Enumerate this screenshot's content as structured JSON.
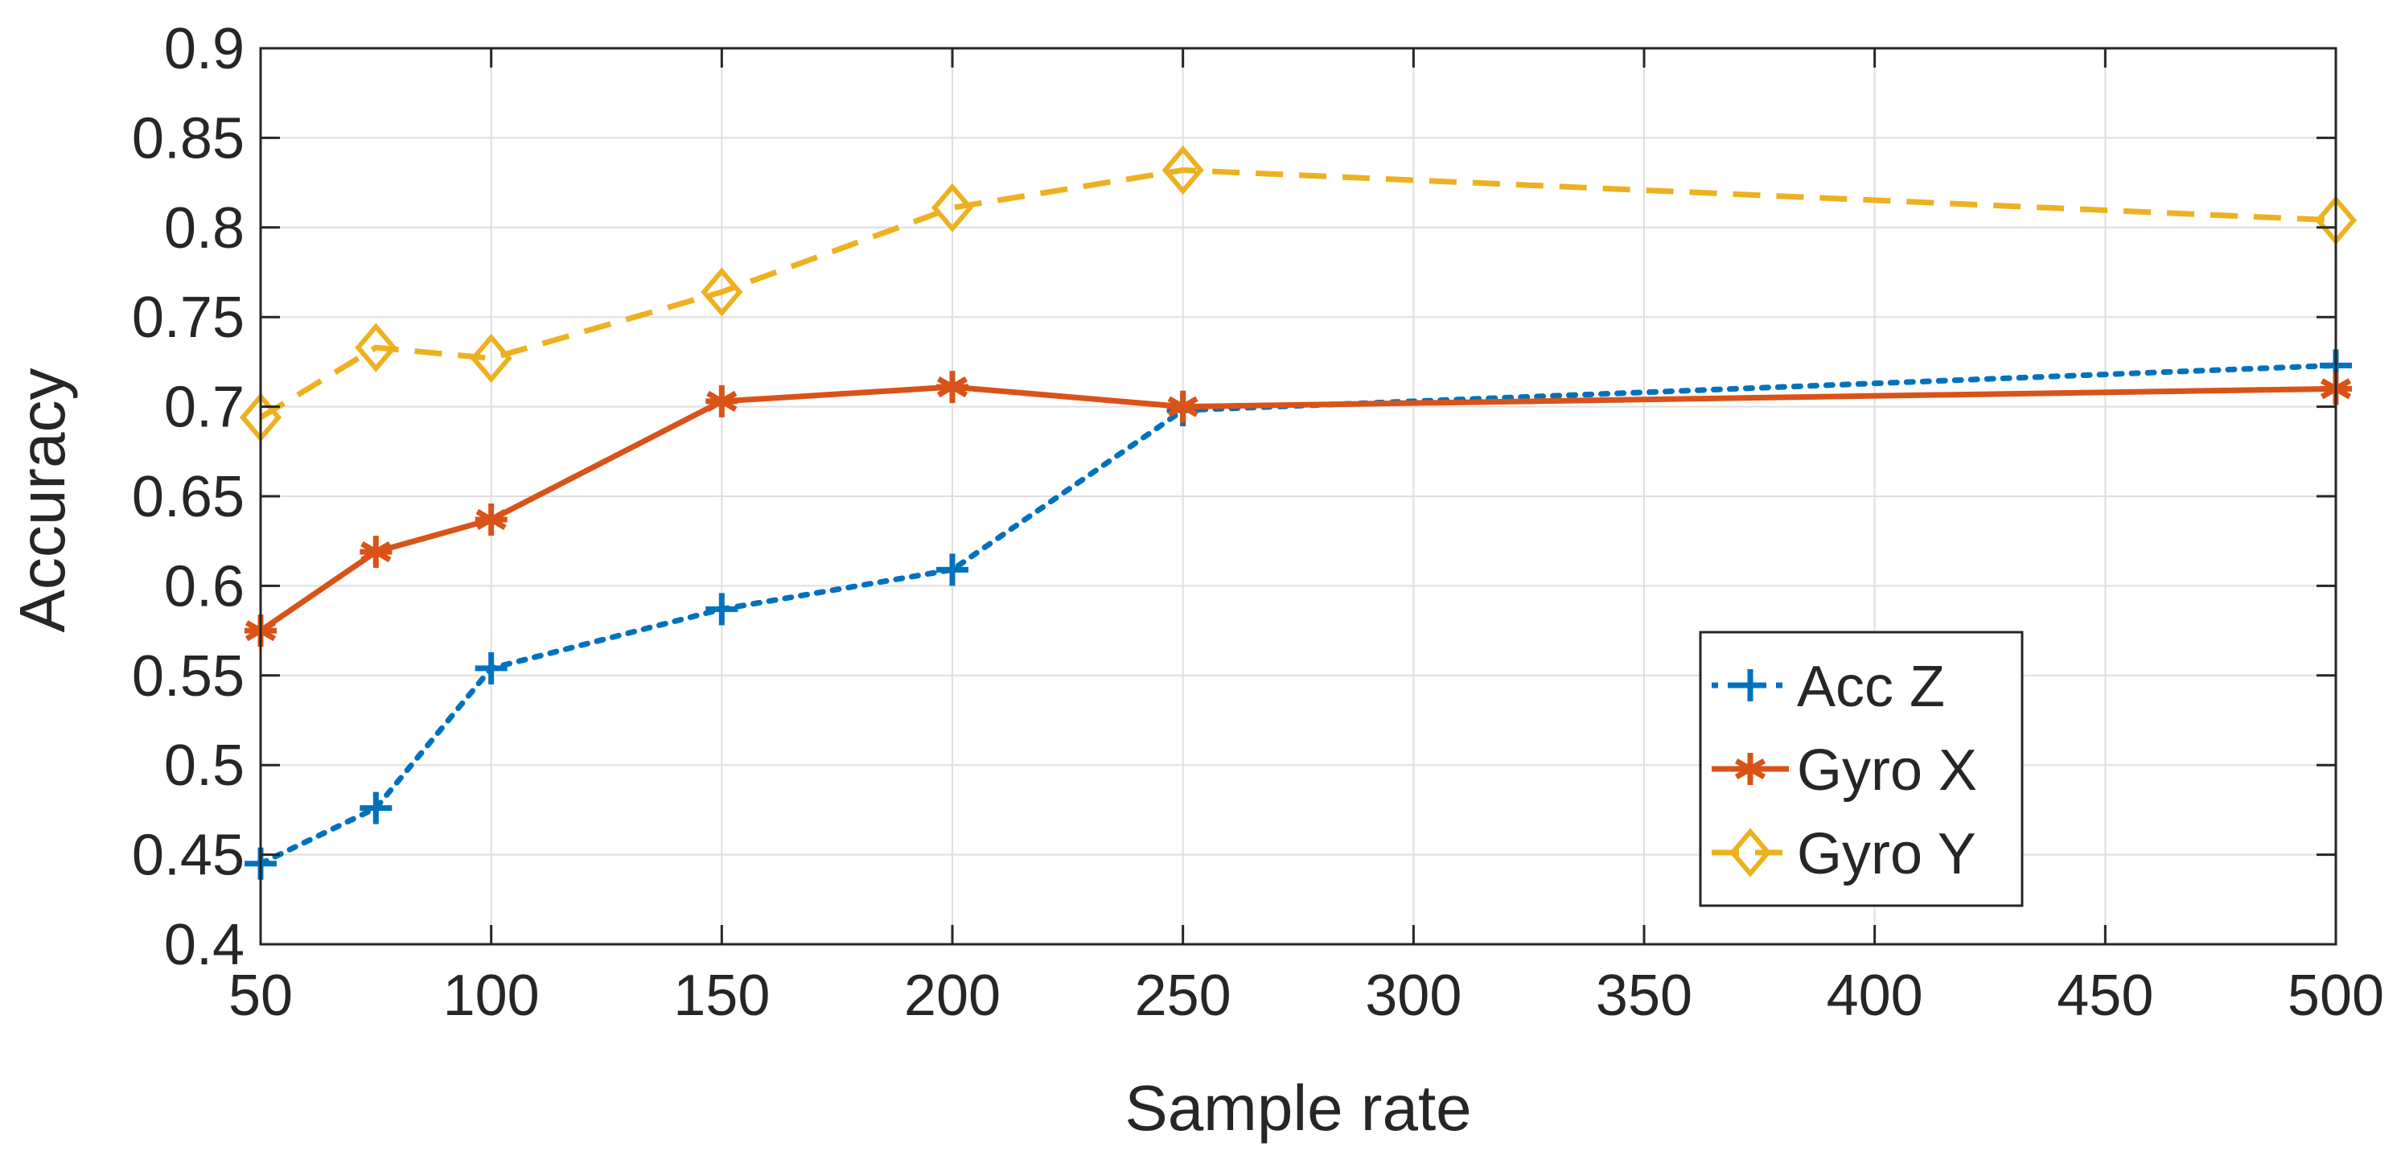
{
  "chart_data": {
    "type": "line",
    "title": "",
    "xlabel": "Sample rate",
    "ylabel": "Accuracy",
    "x": [
      50,
      75,
      100,
      150,
      200,
      250,
      500
    ],
    "x_tick_values": [
      50,
      100,
      150,
      200,
      250,
      300,
      350,
      400,
      450,
      500
    ],
    "x_tick_labels": [
      "50",
      "100",
      "150",
      "200",
      "250",
      "300",
      "350",
      "400",
      "450",
      "500"
    ],
    "y_tick_values": [
      0.4,
      0.45,
      0.5,
      0.55,
      0.6,
      0.65,
      0.7,
      0.75,
      0.8,
      0.85,
      0.9
    ],
    "y_tick_labels": [
      "0.4",
      "0.45",
      "0.5",
      "0.55",
      "0.6",
      "0.65",
      "0.7",
      "0.75",
      "0.8",
      "0.85",
      "0.9"
    ],
    "xlim": [
      50,
      500
    ],
    "ylim": [
      0.4,
      0.9
    ],
    "grid": true,
    "legend_position": "bottom-right",
    "series": [
      {
        "name": "Acc Z",
        "color": "#0072BD",
        "line_style": "dotted",
        "marker": "plus",
        "values": [
          0.445,
          0.476,
          0.554,
          0.587,
          0.609,
          0.698,
          0.723
        ]
      },
      {
        "name": "Gyro X",
        "color": "#D95319",
        "line_style": "solid",
        "marker": "asterisk",
        "values": [
          0.575,
          0.619,
          0.637,
          0.703,
          0.711,
          0.7,
          0.71
        ]
      },
      {
        "name": "Gyro Y",
        "color": "#EDB120",
        "line_style": "dashed",
        "marker": "diamond",
        "values": [
          0.694,
          0.733,
          0.727,
          0.764,
          0.811,
          0.832,
          0.804
        ]
      }
    ]
  }
}
